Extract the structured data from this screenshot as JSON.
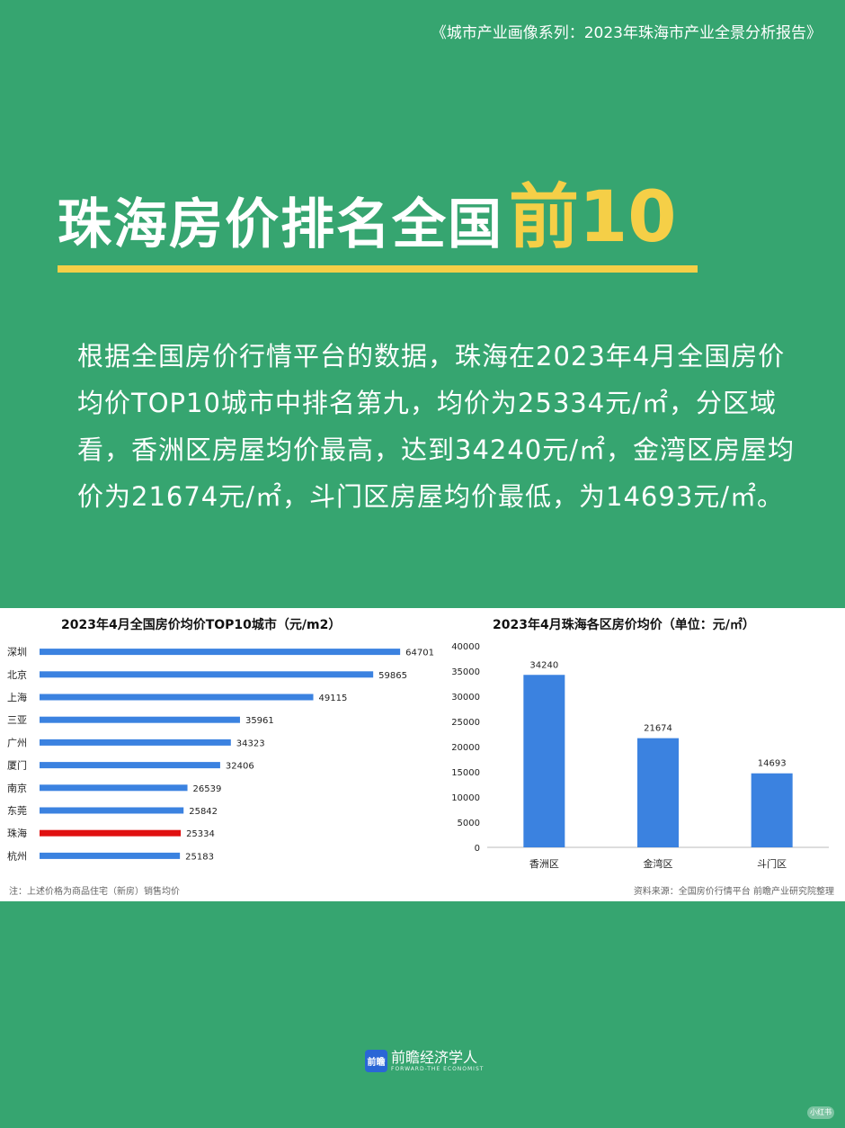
{
  "header": {
    "caption": "《城市产业画像系列：2023年珠海市产业全景分析报告》"
  },
  "headline": {
    "main": "珠海房价排名全国",
    "accent": "前10"
  },
  "body_text": "根据全国房价行情平台的数据，珠海在2023年4月全国房价均价TOP10城市中排名第九，均价为25334元/㎡，分区域看，香洲区房屋均价最高，达到34240元/㎡，金湾区房屋均价为21674元/㎡，斗门区房屋均价最低，为14693元/㎡。",
  "notes": {
    "left": "注：上述价格为商品住宅（新房）销售均价",
    "right": "资料来源：全国房价行情平台  前瞻产业研究院整理"
  },
  "footer": {
    "logo_badge": "前瞻",
    "brand_cn": "前瞻经济学人",
    "brand_en": "FORWARD-THE ECONOMIST",
    "corner": "小红书"
  },
  "colors": {
    "background": "#36a570",
    "accent_yellow": "#f5cf47",
    "bar_blue": "#3b82e0",
    "bar_highlight": "#e01010"
  },
  "chart_data": [
    {
      "type": "bar",
      "orientation": "horizontal",
      "title": "2023年4月全国房价均价TOP10城市（元/m2）",
      "categories": [
        "深圳",
        "北京",
        "上海",
        "三亚",
        "广州",
        "厦门",
        "南京",
        "东莞",
        "珠海",
        "杭州"
      ],
      "values": [
        64701,
        59865,
        49115,
        35961,
        34323,
        32406,
        26539,
        25842,
        25334,
        25183
      ],
      "highlight": "珠海",
      "xlim": [
        0,
        70000
      ]
    },
    {
      "type": "bar",
      "orientation": "vertical",
      "title": "2023年4月珠海各区房价均价（单位：元/㎡）",
      "categories": [
        "香洲区",
        "金湾区",
        "斗门区"
      ],
      "values": [
        34240,
        21674,
        14693
      ],
      "ylim": [
        0,
        40000
      ],
      "yticks": [
        "40000",
        "35000",
        "30000",
        "25000",
        "20000",
        "15000",
        "10000",
        "5000",
        "0"
      ]
    }
  ]
}
